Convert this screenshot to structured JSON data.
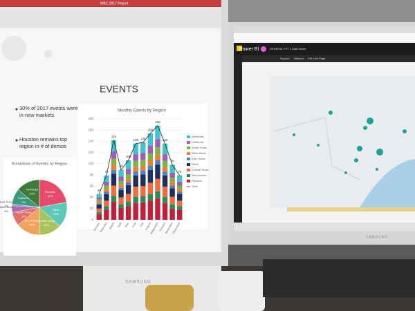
{
  "left_monitor": {
    "window_title": "WBC 2017 Report",
    "brand": "SAMSUNG",
    "slide": {
      "title": "EVENTS",
      "bullets": [
        "30% of 2017 events were in new markets",
        "Houston remains top region in # of demos"
      ],
      "bar_chart": {
        "type": "bar",
        "stacked": true,
        "title": "Monthly Events by Region",
        "categories": [
          "January",
          "February",
          "March",
          "April",
          "May",
          "June",
          "July",
          "August",
          "September",
          "October",
          "November",
          "December"
        ],
        "ylim": [
          0,
          180
        ],
        "yticks": [
          0,
          20,
          40,
          60,
          80,
          100,
          120,
          140,
          160,
          180
        ],
        "grid": true,
        "series": [
          {
            "name": "Northeast",
            "color": "#41c4cc",
            "values": [
              6,
              11,
              20,
              12,
              15,
              19,
              19,
              22,
              24,
              19,
              14,
              11
            ]
          },
          {
            "name": "California",
            "color": "#9c5fb5",
            "values": [
              4,
              7,
              13,
              8,
              10,
              12,
              12,
              14,
              15,
              12,
              9,
              7
            ]
          },
          {
            "name": "South Texas",
            "color": "#7cb342",
            "values": [
              4,
              6,
              11,
              7,
              8,
              11,
              11,
              12,
              13,
              11,
              8,
              6
            ]
          },
          {
            "name": "West Texas",
            "color": "#ef7d31",
            "values": [
              3,
              5,
              9,
              5,
              6,
              8,
              8,
              9,
              10,
              8,
              6,
              5
            ]
          },
          {
            "name": "East Texas",
            "color": "#4f7fc4",
            "values": [
              2,
              4,
              7,
              4,
              5,
              7,
              7,
              8,
              8,
              7,
              5,
              4
            ]
          },
          {
            "name": "Other",
            "color": "#1f2f5c",
            "values": [
              7,
              12,
              21,
              13,
              16,
              20,
              21,
              23,
              25,
              20,
              15,
              12
            ]
          },
          {
            "name": "Central Texas",
            "color": "#f26b3a",
            "values": [
              6,
              10,
              18,
              12,
              14,
              18,
              18,
              20,
              22,
              18,
              13,
              10
            ]
          },
          {
            "name": "San Antonio",
            "color": "#2e8b57",
            "values": [
              4,
              6,
              11,
              7,
              8,
              11,
              11,
              12,
              13,
              11,
              8,
              6
            ]
          },
          {
            "name": "Houston",
            "color": "#c0203a",
            "values": [
              10,
              18,
              32,
              21,
              24,
              30,
              31,
              34,
              38,
              30,
              20,
              18
            ]
          }
        ],
        "total": {
          "name": "Total",
          "color": "#222222",
          "values": [
            46,
            79,
            142,
            89,
            106,
            136,
            138,
            154,
            168,
            136,
            98,
            79
          ]
        }
      },
      "pie_chart": {
        "type": "pie",
        "title": "Breakdown of Events, by Region",
        "labels": [
          "Houston",
          "Other",
          "Central Texas",
          "San Antonio",
          "South Texas",
          "West Texas",
          "East Texas",
          "California",
          "Northeast"
        ],
        "values": [
          22,
          15,
          13,
          14,
          8,
          4,
          1,
          9,
          14
        ],
        "value_labels": [
          "22%",
          "15%",
          "13%",
          "14%",
          "8%",
          "4%",
          "1%",
          "9%",
          "14%"
        ],
        "colors": [
          "#e84a6a",
          "#5cc8b8",
          "#a7c45a",
          "#f0a35a",
          "#e0706a",
          "#b06ab0",
          "#5a8ad0",
          "#3a9a7a",
          "#3f7a3a"
        ]
      }
    }
  },
  "right_monitor": {
    "brand": "SAMSUNG",
    "app": "Power BI",
    "breadcrumb": [
      "GENERAL",
      "FST 3 Data Model"
    ],
    "menu": [
      "Explore",
      "Network",
      "File Live Page"
    ]
  }
}
